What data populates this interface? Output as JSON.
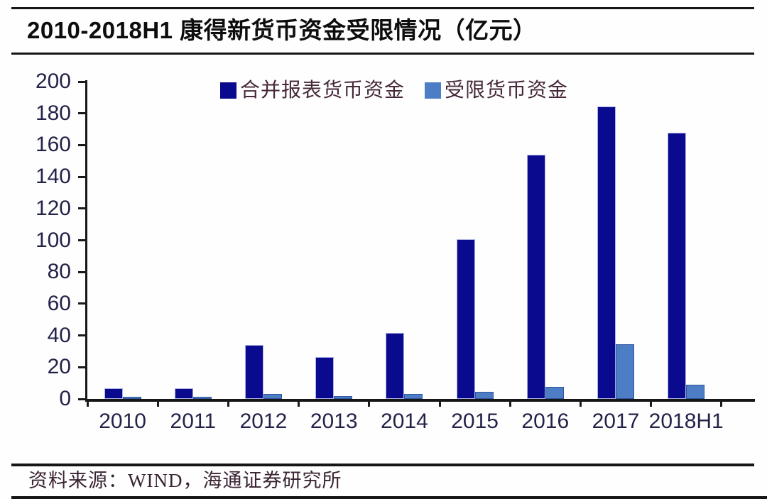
{
  "title": "2010-2018H1 康得新货币资金受限情况（亿元）",
  "source_note": "资料来源：WIND，海通证券研究所",
  "colors": {
    "series1_fill": "#0a0a8f",
    "series2_fill": "#4d7ec5",
    "axis_line": "#1a1a1a",
    "tick_label": "#23234a",
    "legend_text": "#46283a",
    "title_text": "#0d0d0d",
    "source_text": "#3a2433"
  },
  "chart_data": {
    "type": "bar",
    "title": "2010-2018H1 康得新货币资金受限情况（亿元）",
    "categories": [
      "2010",
      "2011",
      "2012",
      "2013",
      "2014",
      "2015",
      "2016",
      "2017",
      "2018H1"
    ],
    "series": [
      {
        "name": "合并报表货币资金",
        "color": "#0a0a8f",
        "values": [
          6.5,
          6.5,
          34,
          26.5,
          41.5,
          100.5,
          154,
          184.5,
          168
        ]
      },
      {
        "name": "受限货币资金",
        "color": "#4d7ec5",
        "values": [
          1.5,
          1.5,
          3,
          2,
          3,
          4.5,
          7.5,
          34.5,
          9
        ]
      }
    ],
    "xlabel": "",
    "ylabel": "",
    "ylim": [
      0,
      200
    ],
    "ytick_step": 20,
    "grid": false,
    "legend_position": "top-inside"
  }
}
